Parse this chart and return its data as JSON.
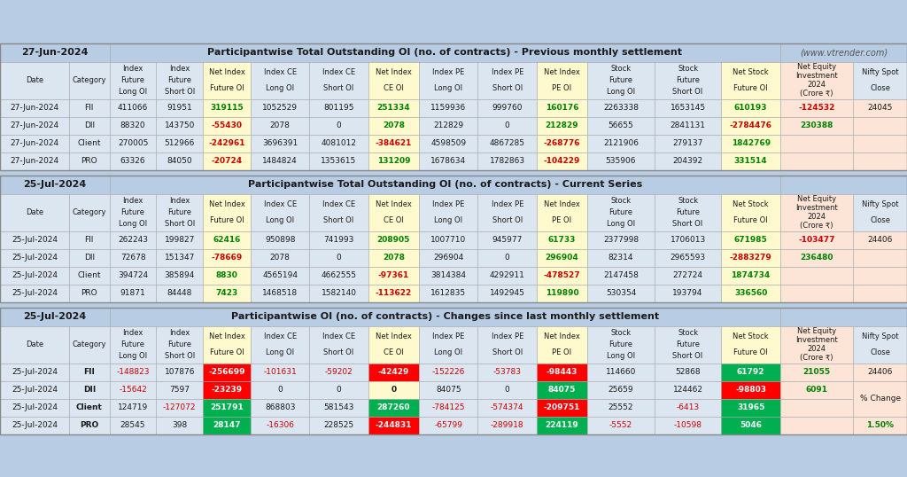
{
  "title1_date": "27-Jun-2024",
  "title1_main": "Participantwise Total Outstanding OI (no. of contracts) - Previous monthly settlement",
  "title1_right": "(www.vtrender.com)",
  "title2_date": "25-Jul-2024",
  "title2_main": "Participantwise Total Outstanding OI (no. of contracts) - Current Series",
  "title3_date": "25-Jul-2024",
  "title3_main": "Participantwise OI (no. of contracts) - Changes since last monthly settlement",
  "section1_data": [
    [
      "27-Jun-2024",
      "FII",
      "411066",
      "91951",
      "319115",
      "1052529",
      "801195",
      "251334",
      "1159936",
      "999760",
      "160176",
      "2263338",
      "1653145",
      "610193",
      "-124532",
      "24045"
    ],
    [
      "27-Jun-2024",
      "DII",
      "88320",
      "143750",
      "-55430",
      "2078",
      "0",
      "2078",
      "212829",
      "0",
      "212829",
      "56655",
      "2841131",
      "-2784476",
      "230388",
      ""
    ],
    [
      "27-Jun-2024",
      "Client",
      "270005",
      "512966",
      "-242961",
      "3696391",
      "4081012",
      "-384621",
      "4598509",
      "4867285",
      "-268776",
      "2121906",
      "279137",
      "1842769",
      "",
      ""
    ],
    [
      "27-Jun-2024",
      "PRO",
      "63326",
      "84050",
      "-20724",
      "1484824",
      "1353615",
      "131209",
      "1678634",
      "1782863",
      "-104229",
      "535906",
      "204392",
      "331514",
      "",
      ""
    ]
  ],
  "section2_data": [
    [
      "25-Jul-2024",
      "FII",
      "262243",
      "199827",
      "62416",
      "950898",
      "741993",
      "208905",
      "1007710",
      "945977",
      "61733",
      "2377998",
      "1706013",
      "671985",
      "-103477",
      "24406"
    ],
    [
      "25-Jul-2024",
      "DII",
      "72678",
      "151347",
      "-78669",
      "2078",
      "0",
      "2078",
      "296904",
      "0",
      "296904",
      "82314",
      "2965593",
      "-2883279",
      "236480",
      ""
    ],
    [
      "25-Jul-2024",
      "Client",
      "394724",
      "385894",
      "8830",
      "4565194",
      "4662555",
      "-97361",
      "3814384",
      "4292911",
      "-478527",
      "2147458",
      "272724",
      "1874734",
      "",
      ""
    ],
    [
      "25-Jul-2024",
      "PRO",
      "91871",
      "84448",
      "7423",
      "1468518",
      "1582140",
      "-113622",
      "1612835",
      "1492945",
      "119890",
      "530354",
      "193794",
      "336560",
      "",
      ""
    ]
  ],
  "section3_data": [
    [
      "25-Jul-2024",
      "FII",
      "-148823",
      "107876",
      "-256699",
      "-101631",
      "-59202",
      "-42429",
      "-152226",
      "-53783",
      "-98443",
      "114660",
      "52868",
      "61792",
      "21055",
      "24406"
    ],
    [
      "25-Jul-2024",
      "DII",
      "-15642",
      "7597",
      "-23239",
      "0",
      "0",
      "0",
      "84075",
      "0",
      "84075",
      "25659",
      "124462",
      "-98803",
      "6091",
      ""
    ],
    [
      "25-Jul-2024",
      "Client",
      "124719",
      "-127072",
      "251791",
      "868803",
      "581543",
      "287260",
      "-784125",
      "-574374",
      "-209751",
      "25552",
      "-6413",
      "31965",
      "",
      ""
    ],
    [
      "25-Jul-2024",
      "PRO",
      "28545",
      "398",
      "28147",
      "-16306",
      "228525",
      "-244831",
      "-65799",
      "-289918",
      "224119",
      "-5552",
      "-10598",
      "5046",
      "",
      ""
    ]
  ],
  "col_headers": [
    [
      "Date"
    ],
    [
      "Category"
    ],
    [
      "Index",
      "Future",
      "Long OI"
    ],
    [
      "Index",
      "Future",
      "Short OI"
    ],
    [
      "Net Index",
      "Future OI"
    ],
    [
      "Index CE",
      "Long OI"
    ],
    [
      "Index CE",
      "Short OI"
    ],
    [
      "Net Index",
      "CE OI"
    ],
    [
      "Index PE",
      "Long OI"
    ],
    [
      "Index PE",
      "Short OI"
    ],
    [
      "Net Index",
      "PE OI"
    ],
    [
      "Stock",
      "Future",
      "Long OI"
    ],
    [
      "Stock",
      "Future",
      "Short OI"
    ],
    [
      "Net Stock",
      "Future OI"
    ],
    [
      "Net Equity",
      "Investment",
      "2024",
      "(Crore ₹)"
    ],
    [
      "Nifty Spot",
      "Close"
    ]
  ],
  "net_col_indices": [
    4,
    7,
    10,
    13
  ],
  "net_eq_col": 14,
  "nifty_col": 15,
  "pct_change_label": "% Change",
  "pct_change_value": "1.50%",
  "C_BG": "#b8cce4",
  "C_TITLE_BG": "#b8cce4",
  "C_HDR_BG": "#dce6f1",
  "C_DATA_BG": "#dce6f1",
  "C_YELLOW": "#fffacd",
  "C_ORANGE": "#fce4d6",
  "C_GREEN_TEXT": "#008000",
  "C_RED_TEXT": "#cc0000",
  "C_BLACK": "#1a1a1a",
  "C_GRAY": "#555555",
  "C_GREEN_CELL": "#00b050",
  "C_RED_CELL": "#ff0000",
  "C_WHITE_TEXT": "#ffffff",
  "C_GREEN_LIGHT_TEXT": "#00aa44"
}
